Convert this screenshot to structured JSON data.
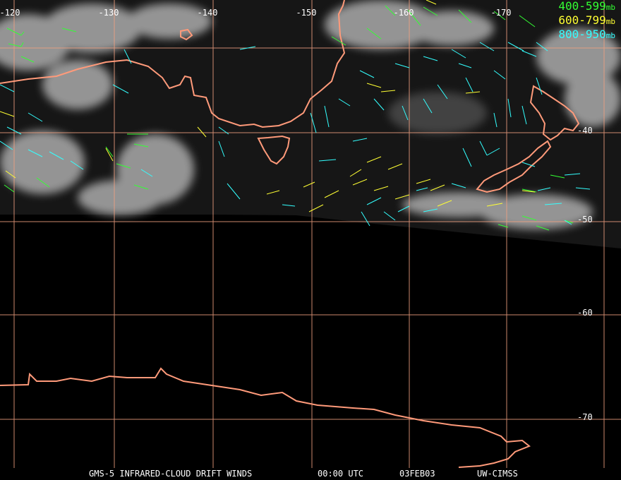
{
  "map": {
    "lon_labels": [
      {
        "text": "-120",
        "id": "lon--120"
      },
      {
        "text": "-130",
        "id": "lon--130"
      },
      {
        "text": "-140",
        "id": "lon--140"
      },
      {
        "text": "-150",
        "id": "lon--150"
      },
      {
        "text": "-160",
        "id": "lon--160"
      },
      {
        "text": "-170",
        "id": "lon--170"
      }
    ],
    "lat_labels": [
      {
        "text": "-40",
        "id": "lat--40"
      },
      {
        "text": "-50",
        "id": "lat--50"
      },
      {
        "text": "-60",
        "id": "lat--60"
      },
      {
        "text": "-70",
        "id": "lat--70"
      }
    ],
    "colors": {
      "grid": "#f0a080",
      "coast": "#ff9a7a",
      "label": "#ffffff",
      "layer_400_599": "#33ff33",
      "layer_600_799": "#ffff33",
      "layer_800_950": "#33ffff"
    }
  },
  "legend": {
    "items": [
      {
        "range": "400-599",
        "unit": "mb",
        "color": "#33ff33"
      },
      {
        "range": "600-799",
        "unit": "mb",
        "color": "#ffff33"
      },
      {
        "range": "800-950",
        "unit": "mb",
        "color": "#33ffff"
      }
    ]
  },
  "footer": {
    "product": "GMS-5 INFRARED-CLOUD DRIFT WINDS",
    "time": "00:00 UTC",
    "date": "03FEB03",
    "source": "UW-CIMSS"
  }
}
